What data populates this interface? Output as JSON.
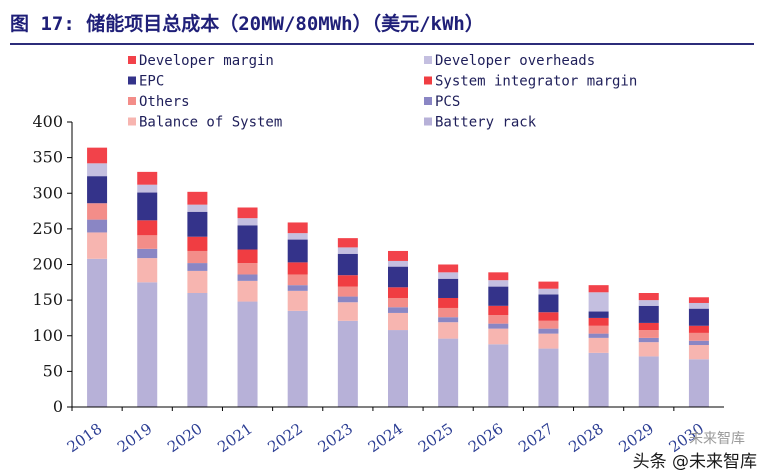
{
  "title": "图 17: 储能项目总成本（20MW/80MWh）（美元/kWh）",
  "watermark": {
    "line1": "未来智库",
    "line2": "头条 @未来智库"
  },
  "colors": {
    "title": "#1f1f78",
    "rule": "#2c2c7a"
  },
  "chart_data": {
    "type": "bar",
    "stacked": true,
    "categories": [
      "2018",
      "2019",
      "2020",
      "2021",
      "2022",
      "2023",
      "2024",
      "2025",
      "2026",
      "2027",
      "2028",
      "2029",
      "2030"
    ],
    "ylim": [
      0,
      400
    ],
    "yticks": [
      0,
      50,
      100,
      150,
      200,
      250,
      300,
      350,
      400
    ],
    "legend_position": "top",
    "grid": false,
    "series": [
      {
        "name": "Battery rack",
        "color": "#b7b1d8",
        "values": [
          208,
          175,
          160,
          148,
          135,
          121,
          108,
          96,
          88,
          82,
          76,
          71,
          67
        ]
      },
      {
        "name": "Balance of System",
        "color": "#f7b5b0",
        "values": [
          37,
          34,
          31,
          29,
          28,
          26,
          24,
          23,
          22,
          21,
          21,
          20,
          20
        ]
      },
      {
        "name": "PCS",
        "color": "#8a86c4",
        "values": [
          18,
          13,
          11,
          9,
          8,
          8,
          8,
          7,
          7,
          7,
          6,
          6,
          6
        ]
      },
      {
        "name": "Others",
        "color": "#f38d89",
        "values": [
          23,
          19,
          17,
          16,
          15,
          14,
          13,
          13,
          12,
          11,
          11,
          11,
          11
        ]
      },
      {
        "name": "System integrator margin",
        "color": "#f03d42",
        "values": [
          0,
          21,
          20,
          19,
          17,
          16,
          15,
          14,
          13,
          12,
          11,
          10,
          10
        ]
      },
      {
        "name": "EPC",
        "color": "#34338a",
        "values": [
          38,
          39,
          35,
          34,
          32,
          30,
          29,
          27,
          27,
          25,
          9,
          24,
          24
        ]
      },
      {
        "name": "Developer overheads",
        "color": "#c4bfe0",
        "values": [
          18,
          11,
          10,
          10,
          9,
          9,
          8,
          9,
          9,
          8,
          27,
          8,
          8
        ]
      },
      {
        "name": "Developer margin",
        "color": "#f2424a",
        "values": [
          22,
          18,
          18,
          15,
          15,
          13,
          14,
          11,
          11,
          10,
          10,
          10,
          8
        ]
      }
    ],
    "legend_order": [
      [
        "Developer margin",
        "Developer overheads"
      ],
      [
        "EPC",
        "System integrator margin"
      ],
      [
        "Others",
        "PCS"
      ],
      [
        "Balance of System",
        "Battery rack"
      ]
    ]
  }
}
